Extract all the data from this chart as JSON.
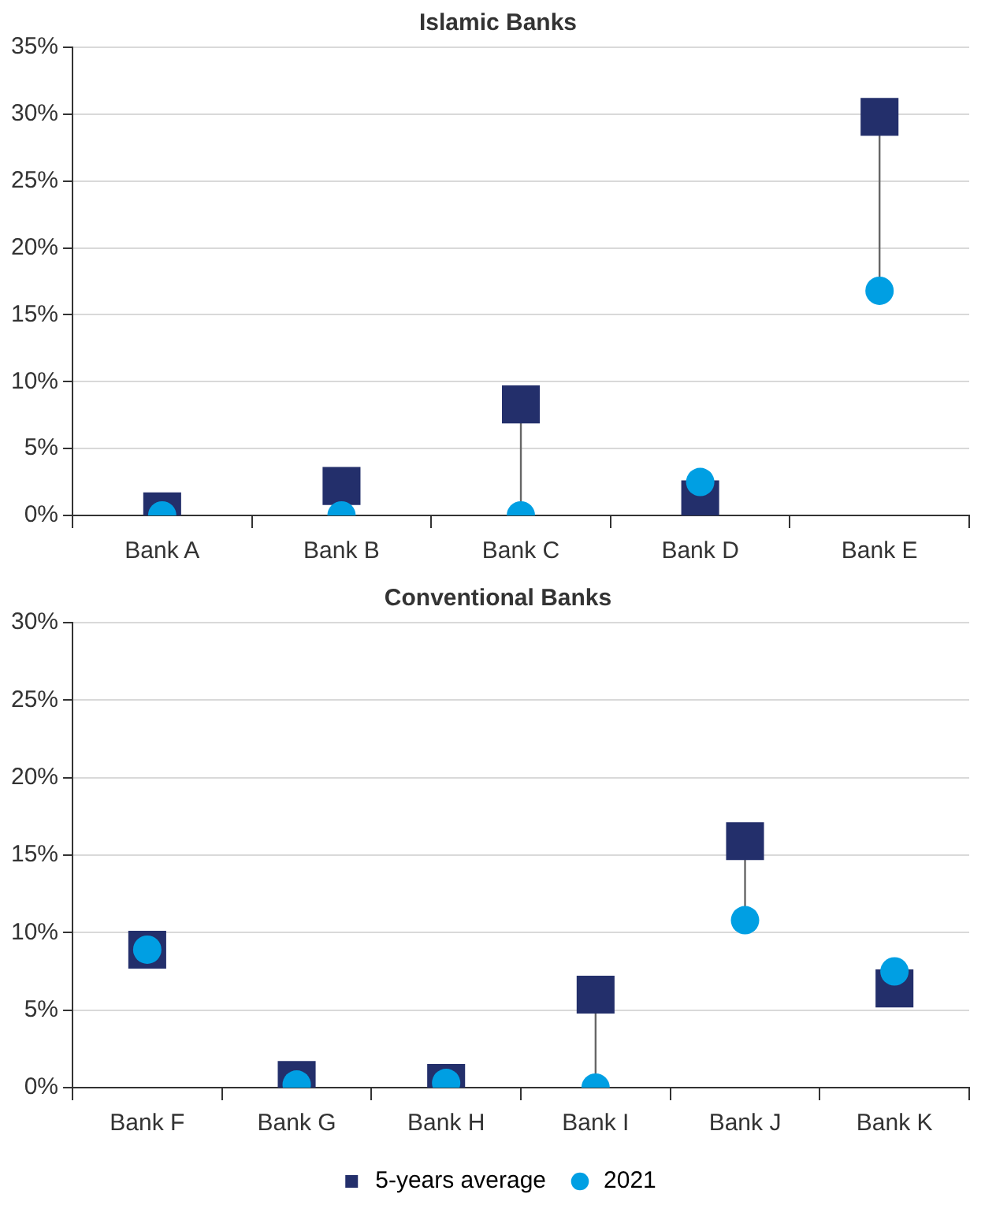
{
  "chart_data": [
    {
      "type": "scatter",
      "title": "Islamic Banks",
      "categories": [
        "Bank A",
        "Bank B",
        "Bank C",
        "Bank D",
        "Bank E"
      ],
      "series": [
        {
          "color": "#232f6b",
          "marker": "square",
          "values": [
            0.3,
            2.2,
            8.3,
            1.2,
            29.8
          ]
        },
        {
          "color": "#009fe3",
          "marker": "circle",
          "values": [
            0,
            0,
            0,
            2.5,
            16.8
          ]
        }
      ],
      "ylim": [
        0,
        35
      ],
      "yticks": [
        {
          "value": 0,
          "label": "0%"
        },
        {
          "value": 5,
          "label": "5%"
        },
        {
          "value": 10,
          "label": "10%"
        },
        {
          "value": 15,
          "label": "15%"
        },
        {
          "value": 20,
          "label": "20%"
        },
        {
          "value": 25,
          "label": "25%"
        },
        {
          "value": 30,
          "label": "30%"
        },
        {
          "value": 35,
          "label": "35%"
        }
      ],
      "grid": "y"
    },
    {
      "type": "scatter",
      "title": "Conventional Banks",
      "categories": [
        "Bank F",
        "Bank G",
        "Bank H",
        "Bank I",
        "Bank J",
        "Bank K"
      ],
      "series": [
        {
          "name": "5-years average",
          "color": "#232f6b",
          "marker": "square",
          "values": [
            8.9,
            0.5,
            0.3,
            6.0,
            15.9,
            6.4
          ]
        },
        {
          "name": "2021",
          "color": "#009fe3",
          "marker": "circle",
          "values": [
            8.9,
            0.2,
            0.3,
            0,
            10.8,
            7.5
          ]
        }
      ],
      "ylim": [
        0,
        30
      ],
      "yticks": [
        {
          "value": 0,
          "label": "0%"
        },
        {
          "value": 5,
          "label": "5%"
        },
        {
          "value": 10,
          "label": "10%"
        },
        {
          "value": 15,
          "label": "15%"
        },
        {
          "value": 20,
          "label": "20%"
        },
        {
          "value": 25,
          "label": "25%"
        },
        {
          "value": 30,
          "label": "30%"
        }
      ],
      "grid": "y",
      "legend": "bottom"
    }
  ]
}
